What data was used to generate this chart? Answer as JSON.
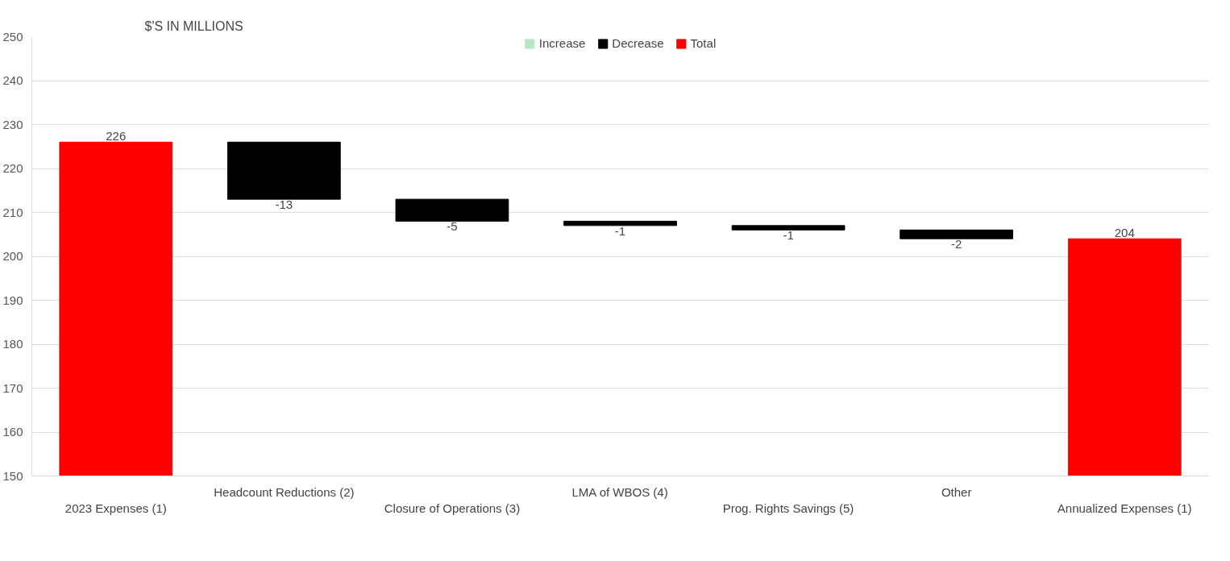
{
  "chart_data": {
    "type": "bar",
    "title": "$'S IN MILLIONS",
    "categories": [
      "2023 Expenses (1)",
      "Headcount Reductions (2)",
      "Closure of Operations (3)",
      "LMA of WBOS (4)",
      "Prog. Rights Savings (5)",
      "Other",
      "Annualized Expenses (1)"
    ],
    "series": [
      {
        "name": "Increase",
        "color": "#b7e8c4",
        "values": [
          null,
          null,
          null,
          null,
          null,
          null,
          null
        ]
      },
      {
        "name": "Decrease",
        "color": "#000000",
        "values": [
          null,
          -13,
          -5,
          -1,
          -1,
          -2,
          null
        ],
        "base": [
          null,
          226,
          213,
          208,
          207,
          206,
          null
        ]
      },
      {
        "name": "Total",
        "color": "#ff0000",
        "values": [
          226,
          null,
          null,
          null,
          null,
          null,
          204
        ],
        "base": [
          0,
          null,
          null,
          null,
          null,
          null,
          0
        ]
      }
    ],
    "ylim": [
      150,
      250
    ],
    "yticks": [
      150,
      160,
      170,
      180,
      190,
      200,
      210,
      220,
      230,
      240,
      250
    ],
    "grid": "y",
    "legend": "top",
    "data_labels": true
  }
}
